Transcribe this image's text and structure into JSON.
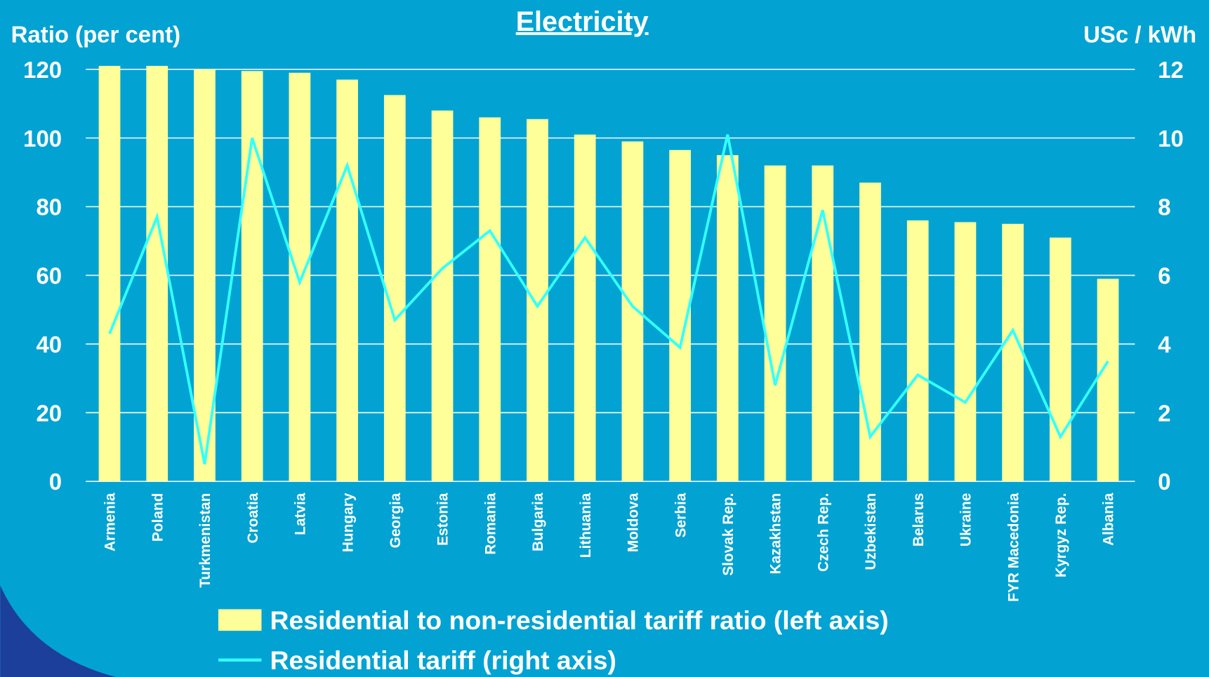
{
  "chart_data": {
    "type": "bar_line",
    "title": "Electricity",
    "ylabel": "Ratio (per cent)",
    "y2label": "USc / kWh",
    "categories": [
      "Armenia",
      "Poland",
      "Turkmenistan",
      "Croatia",
      "Latvia",
      "Hungary",
      "Georgia",
      "Estonia",
      "Romania",
      "Bulgaria",
      "Lithuania",
      "Moldova",
      "Serbia",
      "Slovak Rep.",
      "Kazakhstan",
      "Czech Rep.",
      "Uzbekistan",
      "Belarus",
      "Ukraine",
      "FYR Macedonia",
      "Kyrgyz Rep.",
      "Albania"
    ],
    "series": [
      {
        "name": "Residential to non-residential tariff ratio (left axis)",
        "type": "bar",
        "color": "#ffff99",
        "values": [
          121,
          121,
          120,
          119.5,
          119,
          117,
          112.5,
          108,
          106,
          105.5,
          101,
          99,
          96.5,
          95,
          92,
          92,
          87,
          76,
          75.5,
          75,
          71,
          59
        ]
      },
      {
        "name": "Residential tariff (right axis)",
        "type": "line",
        "axis": "y2",
        "color": "#33ffff",
        "values": [
          4.3,
          7.7,
          0.5,
          10.0,
          5.8,
          9.2,
          4.7,
          6.2,
          7.3,
          5.1,
          7.1,
          5.1,
          3.9,
          10.1,
          2.8,
          7.9,
          1.3,
          3.1,
          2.3,
          4.4,
          1.3,
          3.5
        ]
      }
    ],
    "ylim": [
      0,
      120
    ],
    "yticks": [
      0,
      20,
      40,
      60,
      80,
      100,
      120
    ],
    "y2lim": [
      0,
      12
    ],
    "y2ticks": [
      0,
      2,
      4,
      6,
      8,
      10,
      12
    ],
    "grid": true
  }
}
